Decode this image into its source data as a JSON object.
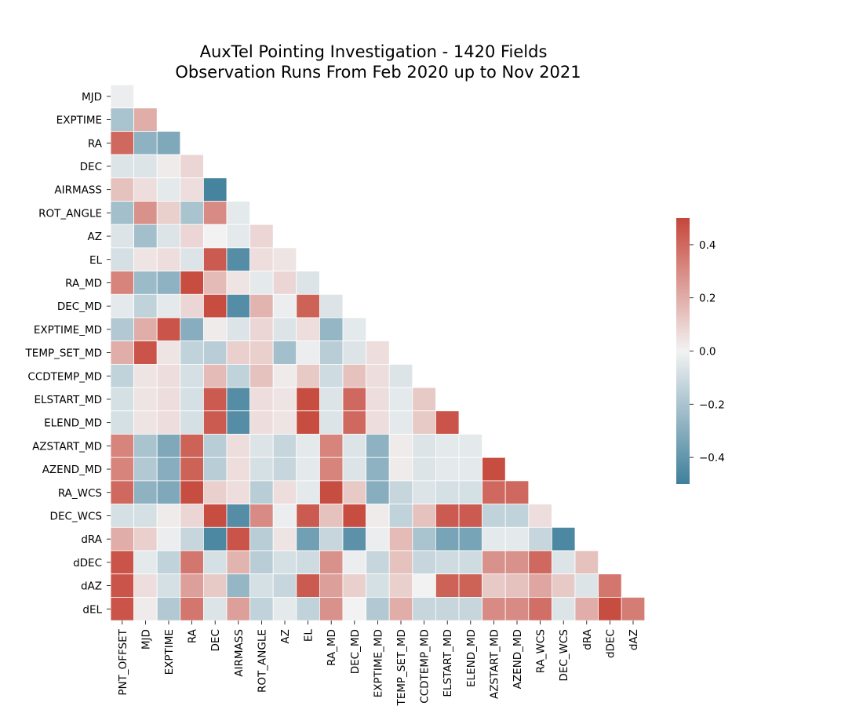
{
  "chart_data": {
    "type": "heatmap",
    "title": "AuxTel Pointing Investigation - 1420 Fields",
    "subtitle": "Observation Runs From Feb 2020 up to Nov 2021",
    "y_labels": [
      "MJD",
      "EXPTIME",
      "RA",
      "DEC",
      "AIRMASS",
      "ROT_ANGLE",
      "AZ",
      "EL",
      "RA_MD",
      "DEC_MD",
      "EXPTIME_MD",
      "TEMP_SET_MD",
      "CCDTEMP_MD",
      "ELSTART_MD",
      "ELEND_MD",
      "AZSTART_MD",
      "AZEND_MD",
      "RA_WCS",
      "DEC_WCS",
      "dRA",
      "dDEC",
      "dAZ",
      "dEL"
    ],
    "x_labels": [
      "PNT_OFFSET",
      "MJD",
      "EXPTIME",
      "RA",
      "DEC",
      "AIRMASS",
      "ROT_ANGLE",
      "AZ",
      "EL",
      "RA_MD",
      "DEC_MD",
      "EXPTIME_MD",
      "TEMP_SET_MD",
      "CCDTEMP_MD",
      "ELSTART_MD",
      "ELEND_MD",
      "AZSTART_MD",
      "AZEND_MD",
      "RA_WCS",
      "DEC_WCS",
      "dRA",
      "dDEC",
      "dAZ"
    ],
    "matrix_lower_triangle": [
      [
        -0.02
      ],
      [
        -0.2,
        0.2
      ],
      [
        0.4,
        -0.28,
        -0.32
      ],
      [
        -0.06,
        -0.06,
        0.02,
        0.08
      ],
      [
        0.14,
        0.06,
        -0.04,
        0.06,
        -0.48
      ],
      [
        -0.22,
        0.28,
        0.1,
        -0.2,
        0.3,
        -0.04
      ],
      [
        -0.06,
        -0.22,
        -0.06,
        0.08,
        0.0,
        -0.04,
        0.08
      ],
      [
        -0.08,
        0.04,
        0.06,
        -0.06,
        0.44,
        -0.44,
        0.06,
        0.04
      ],
      [
        0.32,
        -0.24,
        -0.28,
        0.48,
        0.16,
        0.04,
        -0.04,
        0.08,
        -0.06
      ],
      [
        -0.04,
        -0.14,
        -0.04,
        0.08,
        0.48,
        -0.44,
        0.18,
        -0.02,
        0.42,
        -0.06
      ],
      [
        -0.18,
        0.2,
        0.46,
        -0.3,
        0.02,
        -0.06,
        0.08,
        -0.06,
        0.06,
        -0.26,
        -0.04
      ],
      [
        0.2,
        0.46,
        0.04,
        -0.14,
        -0.16,
        0.1,
        0.1,
        -0.22,
        -0.02,
        -0.16,
        -0.06,
        0.06
      ],
      [
        -0.14,
        0.04,
        0.06,
        -0.08,
        0.16,
        -0.14,
        0.14,
        0.02,
        0.12,
        -0.1,
        0.14,
        0.06,
        -0.06
      ],
      [
        -0.08,
        0.04,
        0.06,
        -0.08,
        0.44,
        -0.44,
        0.06,
        0.04,
        0.48,
        -0.06,
        0.4,
        0.06,
        -0.04,
        0.12
      ],
      [
        -0.08,
        0.04,
        0.06,
        -0.08,
        0.44,
        -0.44,
        0.06,
        0.04,
        0.48,
        -0.06,
        0.4,
        0.06,
        -0.04,
        0.12,
        0.46
      ],
      [
        0.32,
        -0.2,
        -0.32,
        0.42,
        -0.16,
        0.06,
        -0.06,
        -0.12,
        -0.04,
        0.32,
        -0.06,
        -0.28,
        0.02,
        -0.06,
        -0.04,
        -0.04
      ],
      [
        0.32,
        -0.18,
        -0.3,
        0.42,
        -0.16,
        0.06,
        -0.08,
        -0.12,
        -0.04,
        0.32,
        -0.06,
        -0.28,
        0.02,
        -0.06,
        -0.04,
        -0.04,
        0.48
      ],
      [
        0.4,
        -0.28,
        -0.32,
        0.48,
        0.1,
        0.06,
        -0.16,
        0.06,
        -0.04,
        0.48,
        0.12,
        -0.3,
        -0.12,
        -0.06,
        -0.08,
        -0.08,
        0.4,
        0.4
      ],
      [
        -0.08,
        -0.08,
        0.02,
        0.08,
        0.48,
        -0.44,
        0.3,
        -0.02,
        0.44,
        0.14,
        0.48,
        0.02,
        -0.14,
        0.14,
        0.44,
        0.44,
        -0.14,
        -0.14,
        0.06
      ],
      [
        0.2,
        0.1,
        -0.02,
        -0.12,
        -0.46,
        0.46,
        -0.16,
        0.04,
        -0.36,
        -0.12,
        -0.42,
        -0.02,
        0.16,
        -0.2,
        -0.34,
        -0.34,
        -0.04,
        -0.04,
        -0.12,
        -0.46
      ],
      [
        0.46,
        -0.04,
        -0.14,
        0.36,
        -0.08,
        0.18,
        -0.16,
        -0.08,
        -0.1,
        0.28,
        -0.02,
        -0.12,
        0.14,
        -0.12,
        -0.1,
        -0.1,
        0.28,
        0.28,
        0.4,
        -0.06,
        0.14
      ],
      [
        0.46,
        0.06,
        -0.08,
        0.24,
        0.12,
        -0.26,
        -0.08,
        -0.12,
        0.44,
        0.24,
        0.1,
        -0.08,
        0.1,
        0.0,
        0.42,
        0.42,
        0.12,
        0.14,
        0.22,
        0.12,
        -0.06,
        0.36
      ],
      [
        0.46,
        0.02,
        -0.18,
        0.36,
        -0.06,
        0.24,
        -0.14,
        -0.04,
        -0.14,
        0.28,
        0.0,
        -0.18,
        0.2,
        -0.12,
        -0.12,
        -0.12,
        0.3,
        0.3,
        0.38,
        -0.06,
        0.2,
        0.48,
        0.34
      ]
    ],
    "vmin": -0.5,
    "vmax": 0.5,
    "colorbar_ticks": [
      0.4,
      0.2,
      0.0,
      -0.2,
      -0.4
    ],
    "colorbar_tick_labels": [
      "0.4",
      "0.2",
      "0.0",
      "−0.2",
      "−0.4"
    ],
    "colors": {
      "negative": "#3f7f9b",
      "center": "#f2f2f2",
      "positive": "#c6463a"
    }
  }
}
